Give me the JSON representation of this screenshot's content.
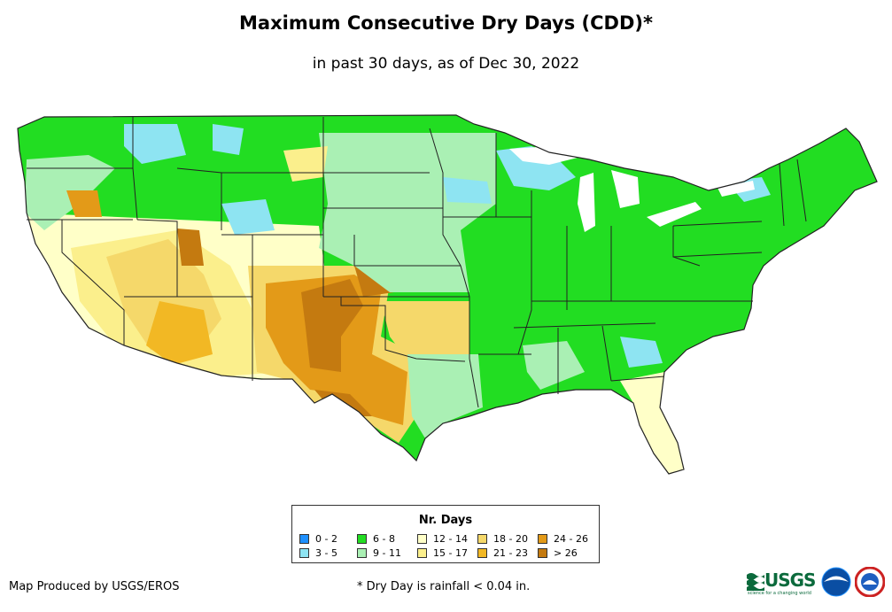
{
  "title": "Maximum Consecutive Dry Days (CDD)*",
  "subtitle": "in past 30 days, as of Dec 30, 2022",
  "legend": {
    "title": "Nr. Days",
    "items": [
      {
        "label": "0 - 2",
        "color": "#1e90ff"
      },
      {
        "label": "3 - 5",
        "color": "#8ee4f2"
      },
      {
        "label": "6 - 8",
        "color": "#22dd22"
      },
      {
        "label": "9 - 11",
        "color": "#aaf0b4"
      },
      {
        "label": "12 - 14",
        "color": "#ffffc8"
      },
      {
        "label": "15 - 17",
        "color": "#fbef8c"
      },
      {
        "label": "18 - 20",
        "color": "#f5d86a"
      },
      {
        "label": "21 - 23",
        "color": "#f2b824"
      },
      {
        "label": "24 - 26",
        "color": "#e39a18"
      },
      {
        "label": "> 26",
        "color": "#c47a10"
      }
    ]
  },
  "credit": "Map Produced by USGS/EROS",
  "footnote": "* Dry Day is rainfall < 0.04 in.",
  "logos": {
    "usgs_text": "USGS",
    "usgs_tagline": "science for a changing world"
  },
  "colors": {
    "state_border": "#222222",
    "background": "#ffffff"
  }
}
